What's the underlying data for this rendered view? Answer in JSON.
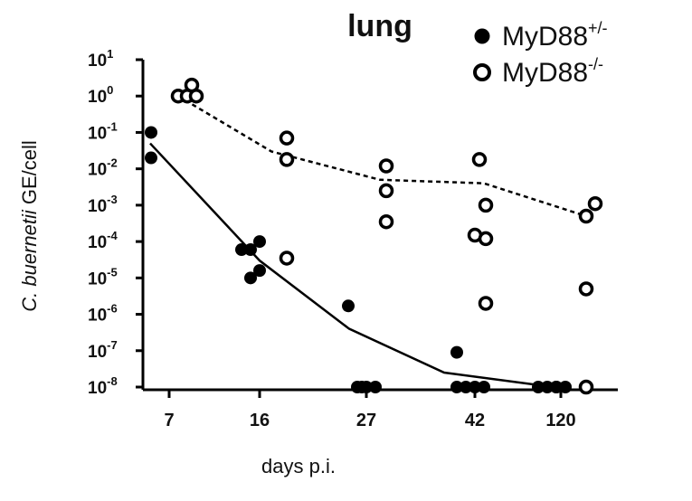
{
  "chart_data": {
    "type": "scatter",
    "title": "lung",
    "xlabel": "days p.i.",
    "ylabel_italic": "C. buernetii",
    "ylabel_rest": " GE/cell",
    "y_scale": "log",
    "ylim": [
      1e-08,
      10
    ],
    "y_ticks": [
      {
        "base": "10",
        "exp": "1"
      },
      {
        "base": "10",
        "exp": "0"
      },
      {
        "base": "10",
        "exp": "-1"
      },
      {
        "base": "10",
        "exp": "-2"
      },
      {
        "base": "10",
        "exp": "-3"
      },
      {
        "base": "10",
        "exp": "-4"
      },
      {
        "base": "10",
        "exp": "-5"
      },
      {
        "base": "10",
        "exp": "-6"
      },
      {
        "base": "10",
        "exp": "-7"
      },
      {
        "base": "10",
        "exp": "-8"
      }
    ],
    "categories": [
      "7",
      "16",
      "27",
      "42",
      "120"
    ],
    "legend_position": "top-right",
    "series": [
      {
        "name": "MyD88",
        "name_sup": "+/-",
        "marker": "filled-circle",
        "line_style": "solid",
        "color": "#000000",
        "points": [
          {
            "category": "7",
            "values": [
              0.1,
              0.02
            ]
          },
          {
            "category": "16",
            "values": [
              6e-05,
              6e-05,
              0.0001,
              1e-05,
              1.6e-05
            ]
          },
          {
            "category": "27",
            "values": [
              1.7e-06,
              1e-08,
              1e-08,
              1e-08,
              1e-08
            ]
          },
          {
            "category": "42",
            "values": [
              9e-08,
              1e-08,
              1e-08,
              1e-08,
              1e-08
            ]
          },
          {
            "category": "120",
            "values": [
              1e-08,
              1e-08,
              1e-08,
              1e-08,
              1e-08
            ]
          }
        ],
        "mean_line": [
          0.05,
          3e-05,
          4e-07,
          2.5e-08,
          1e-08
        ]
      },
      {
        "name": "MyD88",
        "name_sup": "-/-",
        "marker": "open-circle",
        "line_style": "dashed",
        "color": "#000000",
        "points": [
          {
            "category": "7",
            "values": [
              1.0,
              1.0,
              2.0,
              1.0
            ]
          },
          {
            "category": "16",
            "values": [
              0.07,
              0.018,
              3.5e-05
            ]
          },
          {
            "category": "27",
            "values": [
              0.012,
              0.0025,
              0.00035
            ]
          },
          {
            "category": "42",
            "values": [
              0.018,
              0.001,
              0.00015,
              0.00012,
              2e-06
            ]
          },
          {
            "category": "120",
            "values": [
              0.0011,
              0.0005,
              5e-06,
              1e-08
            ]
          }
        ],
        "mean_line": [
          1.0,
          0.03,
          0.005,
          0.004,
          0.0005
        ]
      }
    ]
  }
}
